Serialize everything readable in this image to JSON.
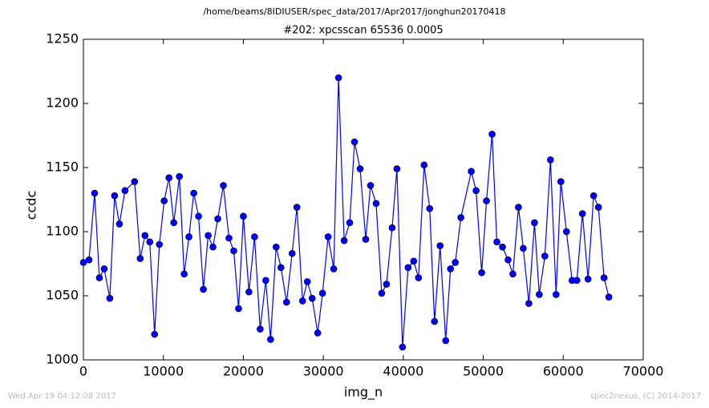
{
  "chart_data": {
    "type": "line",
    "suptitle": "/home/beams/8IDIUSER/spec_data/2017/Apr2017/jonghun20170418",
    "title": "#202: xpcsscan 65536 0.0005",
    "xlabel": "img_n",
    "ylabel": "ccdc",
    "footer_left": "Wed Apr 19 04:12:08 2017",
    "footer_right": "spec2nexus, (C) 2014-2017",
    "x": [
      0,
      700,
      1400,
      2000,
      2600,
      3300,
      3900,
      4500,
      5200,
      6400,
      7100,
      7700,
      8300,
      8900,
      9500,
      10100,
      10700,
      11300,
      12000,
      12600,
      13200,
      13800,
      14400,
      15000,
      15600,
      16200,
      16800,
      17500,
      18200,
      18800,
      19400,
      20000,
      20700,
      21400,
      22100,
      22800,
      23400,
      24100,
      24700,
      25400,
      26100,
      26700,
      27400,
      28000,
      28600,
      29300,
      29900,
      30600,
      31300,
      31900,
      32600,
      33300,
      33900,
      34600,
      35300,
      35900,
      36600,
      37300,
      37900,
      38600,
      39200,
      39900,
      40600,
      41300,
      41900,
      42600,
      43300,
      43900,
      44600,
      45300,
      45900,
      46500,
      47200,
      48500,
      49100,
      49800,
      50400,
      51100,
      51700,
      52400,
      53100,
      53700,
      54400,
      55000,
      55700,
      56400,
      57000,
      57700,
      58400,
      59100,
      59700,
      60400,
      61100,
      61700,
      62400,
      63100,
      63800,
      64400,
      65100,
      65700
    ],
    "series": [
      {
        "name": "ccdc",
        "color": "#0000ff",
        "values": [
          1076,
          1078,
          1130,
          1064,
          1071,
          1048,
          1128,
          1106,
          1132,
          1139,
          1079,
          1097,
          1092,
          1020,
          1090,
          1124,
          1142,
          1107,
          1143,
          1067,
          1096,
          1130,
          1112,
          1055,
          1097,
          1088,
          1110,
          1136,
          1095,
          1085,
          1040,
          1112,
          1053,
          1096,
          1024,
          1062,
          1016,
          1088,
          1072,
          1045,
          1083,
          1119,
          1046,
          1061,
          1048,
          1021,
          1052,
          1096,
          1071,
          1220,
          1093,
          1107,
          1170,
          1149,
          1094,
          1136,
          1122,
          1052,
          1059,
          1103,
          1149,
          1010,
          1072,
          1077,
          1064,
          1152,
          1118,
          1030,
          1089,
          1015,
          1071,
          1076,
          1111,
          1147,
          1132,
          1068,
          1124,
          1176,
          1092,
          1088,
          1078,
          1067,
          1119,
          1087,
          1044,
          1107,
          1051,
          1081,
          1156,
          1051,
          1139,
          1100,
          1062,
          1062,
          1114,
          1063,
          1128,
          1119,
          1064,
          1049
        ]
      }
    ],
    "xlim": [
      0,
      70000
    ],
    "xticks": [
      0,
      10000,
      20000,
      30000,
      40000,
      50000,
      60000,
      70000
    ],
    "ylim": [
      1000,
      1250
    ],
    "yticks": [
      1000,
      1050,
      1100,
      1150,
      1200,
      1250
    ]
  }
}
